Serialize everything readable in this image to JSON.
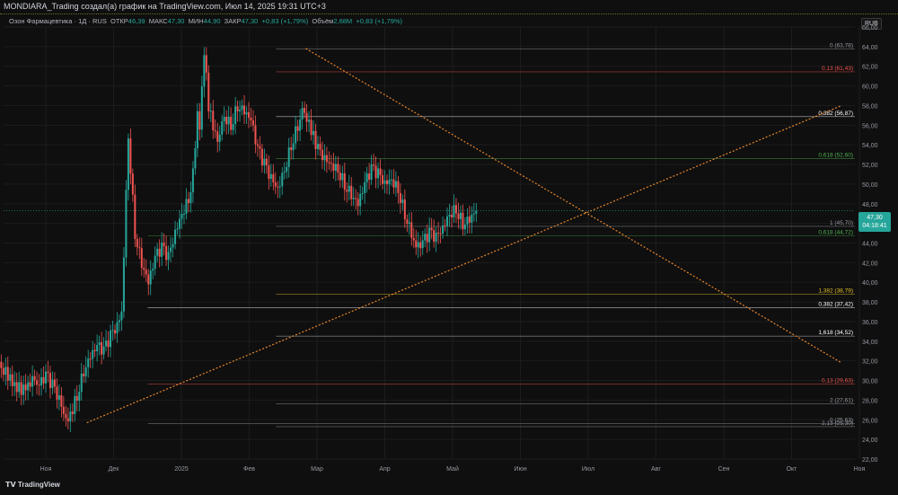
{
  "header": {
    "attribution": "MONDIARA_Trading создал(а) график на TradingView.com, Июл 14, 2025 19:31 UTC+3"
  },
  "legend": {
    "symbol": "Озон Фармацевтика · 1Д · RUS",
    "open_label": "ОТКР",
    "open": "46,39",
    "high_label": "МАКС",
    "high": "47,30",
    "low_label": "МИН",
    "low": "44,90",
    "close_label": "ЗАКР",
    "close": "47,30",
    "change": "+0,83 (+1,79%)",
    "volume_label": "Объём",
    "volume": "2,68M",
    "volume_change": "+0,83 (+1,79%)"
  },
  "currency": "RUB",
  "last_price": {
    "value": "47,30",
    "countdown": "04:18:41"
  },
  "footer": {
    "brand": "TradingView"
  },
  "colors": {
    "up": "#26a69a",
    "down": "#ef5350",
    "trend": "#e8862b",
    "grid": "#1c1c1c",
    "axis_text": "#9598a1"
  },
  "chart_data": {
    "type": "candlestick",
    "y_axis": {
      "min": 22,
      "max": 66,
      "position": "right",
      "ticks": [
        "22,00",
        "24,00",
        "26,00",
        "28,00",
        "30,00",
        "32,00",
        "34,00",
        "36,00",
        "38,00",
        "40,00",
        "42,00",
        "44,00",
        "46,00",
        "48,00",
        "50,00",
        "52,00",
        "54,00",
        "56,00",
        "58,00",
        "60,00",
        "62,00",
        "64,00",
        "66,00"
      ]
    },
    "x_axis": {
      "labels": [
        "Ноя",
        "Дек",
        "2025",
        "Фев",
        "Мар",
        "Апр",
        "Май",
        "Июн",
        "Июл",
        "Авг",
        "Сен",
        "Окт",
        "Ноя"
      ]
    },
    "grid": true,
    "fib_levels": [
      {
        "label": "0 (63,78)",
        "value": 63.78,
        "color": "#9598a1",
        "start_month": "Фев"
      },
      {
        "label": "0,13 (61,43)",
        "value": 61.43,
        "color": "#ef5350",
        "start_month": "Фев"
      },
      {
        "label": "0,382 (56,87)",
        "value": 56.87,
        "color": "#ffffff",
        "start_month": "Фев"
      },
      {
        "label": "0,618 (52,60)",
        "value": 52.6,
        "color": "#4caf50",
        "start_month": "Фев"
      },
      {
        "label": "1 (45,70)",
        "value": 45.7,
        "color": "#9598a1",
        "start_month": "Фев"
      },
      {
        "label": "0,618 (44,72)",
        "value": 44.72,
        "color": "#4caf50",
        "start_month": "Дек"
      },
      {
        "label": "1,382 (38,79)",
        "value": 38.79,
        "color": "#e3c12b",
        "start_month": "Фев"
      },
      {
        "label": "0,382 (37,42)",
        "value": 37.42,
        "color": "#ffffff",
        "start_month": "Дек"
      },
      {
        "label": "1,618 (34,52)",
        "value": 34.52,
        "color": "#ffffff",
        "start_month": "Фев"
      },
      {
        "label": "0,13 (29,63)",
        "value": 29.63,
        "color": "#ef5350",
        "start_month": "Дек"
      },
      {
        "label": "2 (27,61)",
        "value": 27.61,
        "color": "#9598a1",
        "start_month": "Фев"
      },
      {
        "label": "0 (25,63)",
        "value": 25.63,
        "color": "#9598a1",
        "start_month": "Дек"
      },
      {
        "label": "2,13 (25,30)",
        "value": 25.3,
        "color": "#9598a1",
        "start_month": "Фев"
      }
    ],
    "trend_lines": [
      {
        "from": {
          "month": "Мар",
          "day_offset": -5,
          "price": 63.8
        },
        "to": {
          "month": "Ноя",
          "day_offset": -8,
          "price": 31.8
        }
      },
      {
        "from": {
          "month": "Дек",
          "day_offset": -12,
          "price": 25.7
        },
        "to": {
          "month": "Ноя",
          "day_offset": -8,
          "price": 58.0
        }
      }
    ],
    "price_path": [
      [
        33.5,
        -28
      ],
      [
        31.5,
        -20
      ],
      [
        29.5,
        -14
      ],
      [
        29.0,
        -10
      ],
      [
        30.0,
        -6
      ],
      [
        29.5,
        -3
      ],
      [
        30.5,
        0
      ],
      [
        29.5,
        3
      ],
      [
        28.0,
        6
      ],
      [
        26.0,
        9
      ],
      [
        26.5,
        11
      ],
      [
        28.5,
        14
      ],
      [
        31.0,
        17
      ],
      [
        32.5,
        20
      ],
      [
        33.5,
        23
      ],
      [
        33.0,
        26
      ],
      [
        34.5,
        29
      ],
      [
        35.5,
        32
      ],
      [
        37.0,
        34
      ],
      [
        55.0,
        37
      ],
      [
        45.0,
        40
      ],
      [
        42.0,
        43
      ],
      [
        40.0,
        46
      ],
      [
        42.5,
        49
      ],
      [
        43.5,
        52
      ],
      [
        42.5,
        55
      ],
      [
        45.0,
        58
      ],
      [
        47.0,
        61
      ],
      [
        48.5,
        64
      ],
      [
        51.0,
        66
      ],
      [
        57.0,
        68
      ],
      [
        55.5,
        69
      ],
      [
        63.5,
        71
      ],
      [
        58.0,
        73
      ],
      [
        56.0,
        75
      ],
      [
        54.5,
        77
      ],
      [
        57.0,
        80
      ],
      [
        56.0,
        83
      ],
      [
        58.0,
        86
      ],
      [
        57.5,
        89
      ],
      [
        56.5,
        92
      ],
      [
        53.5,
        95
      ],
      [
        52.0,
        98
      ],
      [
        50.5,
        101
      ],
      [
        49.5,
        104
      ],
      [
        51.5,
        107
      ],
      [
        54.0,
        110
      ],
      [
        56.0,
        113
      ],
      [
        57.5,
        115
      ],
      [
        56.5,
        117
      ],
      [
        55.5,
        119
      ],
      [
        53.5,
        122
      ],
      [
        52.5,
        125
      ],
      [
        52.0,
        128
      ],
      [
        51.5,
        131
      ],
      [
        50.0,
        134
      ],
      [
        49.0,
        137
      ],
      [
        48.0,
        140
      ],
      [
        50.0,
        143
      ],
      [
        51.5,
        146
      ],
      [
        51.0,
        149
      ],
      [
        50.0,
        152
      ],
      [
        50.5,
        155
      ],
      [
        49.5,
        158
      ],
      [
        47.0,
        161
      ],
      [
        45.0,
        164
      ],
      [
        43.5,
        166
      ],
      [
        44.0,
        169
      ],
      [
        45.0,
        172
      ],
      [
        44.5,
        175
      ],
      [
        45.5,
        178
      ],
      [
        47.0,
        181
      ],
      [
        47.5,
        184
      ],
      [
        46.0,
        187
      ],
      [
        46.5,
        190
      ],
      [
        47.3,
        193
      ]
    ]
  }
}
